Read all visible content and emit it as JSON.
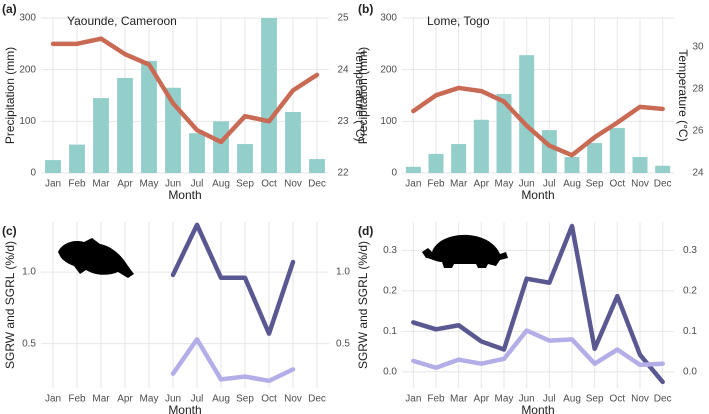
{
  "chart_data": [
    {
      "type": "combo",
      "label": "(a)",
      "title": "Yaounde, Cameroon",
      "x_label": "Month",
      "y_label": "Precipitation (mm)",
      "y2_label": "Temperature (°C)",
      "categories": [
        "Jan",
        "Feb",
        "Mar",
        "Apr",
        "May",
        "Jun",
        "Jul",
        "Aug",
        "Sep",
        "Oct",
        "Nov",
        "Dec"
      ],
      "series": [
        {
          "color": "#93cecb",
          "values": [
            25,
            55,
            145,
            184,
            217,
            165,
            77,
            100,
            56,
            300,
            118,
            27
          ]
        },
        {
          "color": "#c96a55",
          "axis": "y2",
          "values": [
            24.5,
            24.5,
            24.6,
            24.3,
            24.1,
            23.35,
            22.83,
            22.6,
            23.1,
            23.0,
            23.6,
            23.9
          ]
        }
      ],
      "ylim": [
        0,
        300
      ],
      "yticks": [
        0,
        100,
        200,
        300
      ],
      "y2lim": [
        22,
        25
      ],
      "y2ticks": [
        22,
        23,
        24,
        25
      ],
      "grid": true
    },
    {
      "type": "combo",
      "label": "(b)",
      "title": "Lome, Togo",
      "x_label": "Month",
      "y_label": "Precipitation (mm)",
      "y2_label": "Temperature (°C)",
      "categories": [
        "Jan",
        "Feb",
        "Mar",
        "Apr",
        "May",
        "Jun",
        "Jul",
        "Aug",
        "Sep",
        "Oct",
        "Nov",
        "Dec"
      ],
      "series": [
        {
          "color": "#93cecb",
          "values": [
            12,
            37,
            56,
            103,
            153,
            228,
            83,
            31,
            58,
            87,
            31,
            14
          ]
        },
        {
          "color": "#c96a55",
          "axis": "y2",
          "values": [
            26.95,
            27.7,
            28.05,
            27.9,
            27.4,
            26.25,
            25.3,
            24.85,
            25.7,
            26.4,
            27.15,
            27.05
          ]
        }
      ],
      "ylim": [
        0,
        300
      ],
      "yticks": [
        0,
        100,
        200,
        300
      ],
      "y2lim": [
        24,
        31.38
      ],
      "y2ticks": [
        24,
        26,
        28,
        30
      ],
      "grid": true
    },
    {
      "type": "line",
      "label": "(c)",
      "x_label": "Month",
      "y_label": "SGRW and SGRL (%/d)",
      "categories": [
        "Jan",
        "Feb",
        "Mar",
        "Apr",
        "May",
        "Jun",
        "Jul",
        "Aug",
        "Sep",
        "Oct",
        "Nov",
        "Dec"
      ],
      "series": [
        {
          "color": "#5a5891",
          "values": [
            null,
            null,
            null,
            null,
            null,
            0.98,
            1.33,
            0.96,
            0.96,
            0.57,
            1.07,
            null
          ]
        },
        {
          "color": "#b3aee8",
          "values": [
            null,
            null,
            null,
            null,
            null,
            0.29,
            0.53,
            0.25,
            0.27,
            0.24,
            0.32,
            null
          ]
        }
      ],
      "ylim": [
        0.19,
        1.35
      ],
      "yticks": [
        {
          "value": 0.5,
          "label": "0.5"
        },
        {
          "value": 1,
          "label": "1.0"
        }
      ],
      "y2lim": [
        0.19,
        1.35
      ],
      "y2ticks": [
        {
          "value": 0.5,
          "label": "0.5"
        },
        {
          "value": 1,
          "label": "1.0"
        }
      ],
      "grid": true
    },
    {
      "type": "line",
      "label": "(d)",
      "x_label": "Month",
      "y_label": "SGRW and SGRL (%/d)",
      "categories": [
        "Jan",
        "Feb",
        "Mar",
        "Apr",
        "May",
        "Jun",
        "Jul",
        "Aug",
        "Sep",
        "Oct",
        "Nov",
        "Dec"
      ],
      "series": [
        {
          "color": "#5a5891",
          "values": [
            0.122,
            0.105,
            0.115,
            0.075,
            0.055,
            0.23,
            0.22,
            0.36,
            0.057,
            0.187,
            0.042,
            -0.025
          ]
        },
        {
          "color": "#b3aee8",
          "values": [
            0.027,
            0.01,
            0.03,
            0.02,
            0.032,
            0.102,
            0.077,
            0.08,
            0.02,
            0.055,
            0.017,
            0.02
          ]
        }
      ],
      "ylim": [
        -0.04,
        0.37
      ],
      "yticks": [
        {
          "value": 0,
          "label": "0.0"
        },
        {
          "value": 0.1,
          "label": "0.1"
        },
        {
          "value": 0.2,
          "label": "0.2"
        },
        {
          "value": 0.3,
          "label": "0.3"
        }
      ],
      "y2lim": [
        -0.04,
        0.37
      ],
      "y2ticks": [
        {
          "value": 0,
          "label": "0.0"
        },
        {
          "value": 0.1,
          "label": "0.1"
        },
        {
          "value": 0.2,
          "label": "0.2"
        },
        {
          "value": 0.3,
          "label": "0.3"
        }
      ],
      "grid": true
    }
  ]
}
